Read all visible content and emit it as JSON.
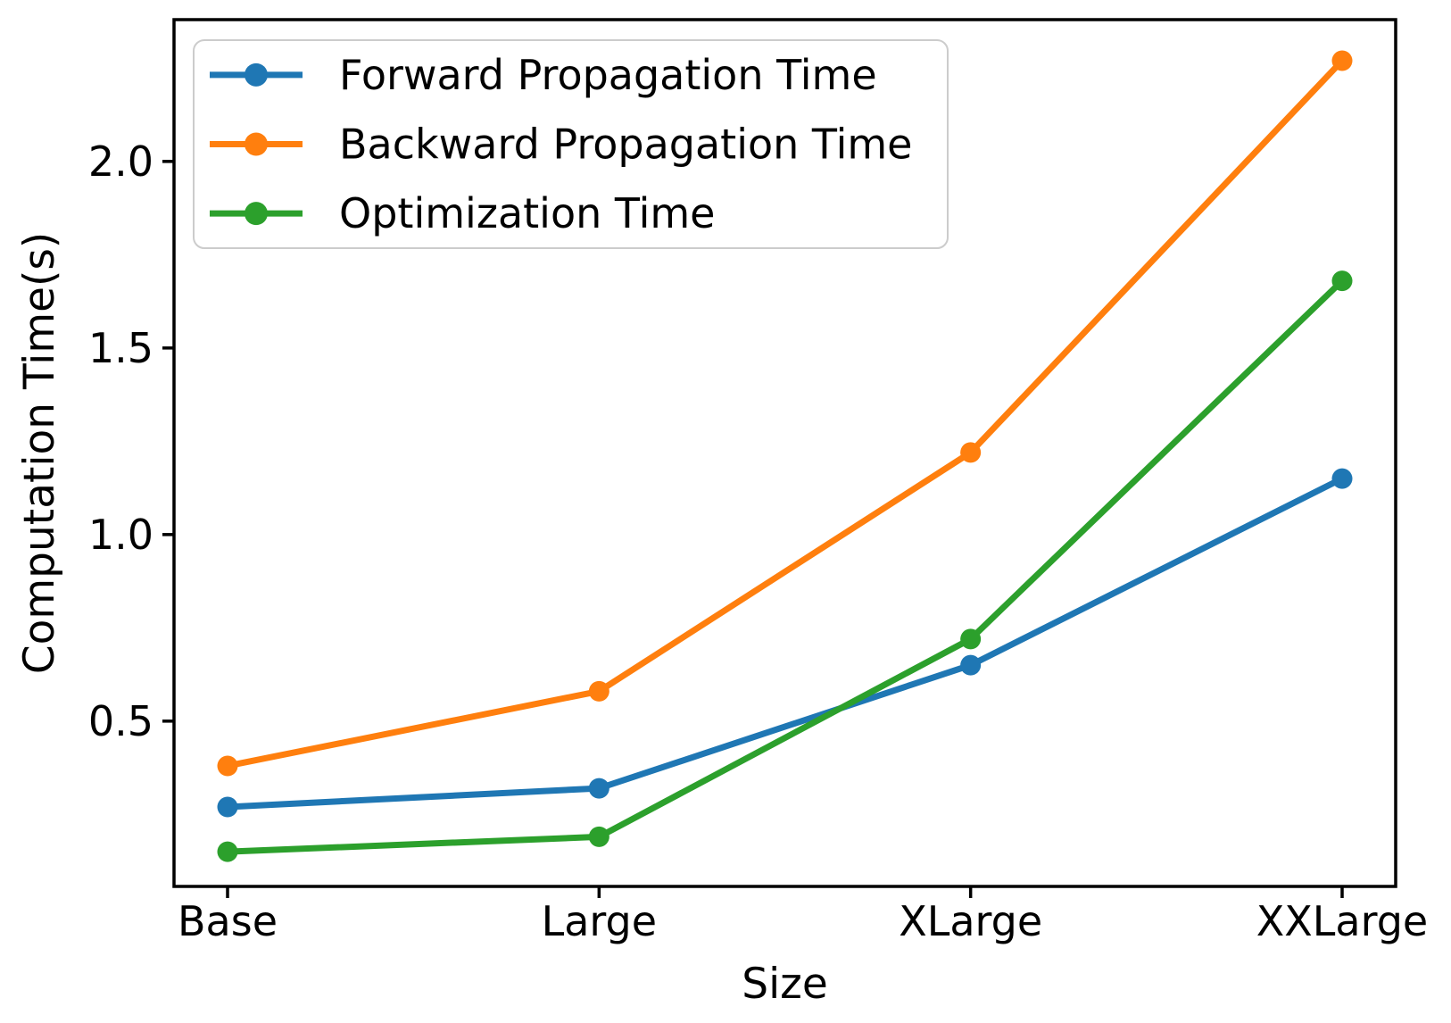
{
  "chart_data": {
    "type": "line",
    "categories": [
      "Base",
      "Large",
      "XLarge",
      "XXLarge"
    ],
    "series": [
      {
        "name": "Forward Propagation Time",
        "color": "#1f77b4",
        "values": [
          0.27,
          0.32,
          0.65,
          1.15
        ]
      },
      {
        "name": "Backward Propagation Time",
        "color": "#ff7f0e",
        "values": [
          0.38,
          0.58,
          1.22,
          2.27
        ]
      },
      {
        "name": "Optimization Time",
        "color": "#2ca02c",
        "values": [
          0.15,
          0.19,
          0.72,
          1.68
        ]
      }
    ],
    "title": "",
    "xlabel": "Size",
    "ylabel": "Computation Time(s)",
    "yticks": [
      {
        "value": 0.5,
        "label": "0.5"
      },
      {
        "value": 1.0,
        "label": "1.0"
      },
      {
        "value": 1.5,
        "label": "1.5"
      },
      {
        "value": 2.0,
        "label": "2.0"
      }
    ],
    "ylim": [
      0.057,
      2.38
    ],
    "grid": false,
    "legend_position": "upper left",
    "marker": "circle",
    "spine_color": "#000000",
    "legend_border_color": "#cccccc",
    "background_color": "#ffffff"
  }
}
